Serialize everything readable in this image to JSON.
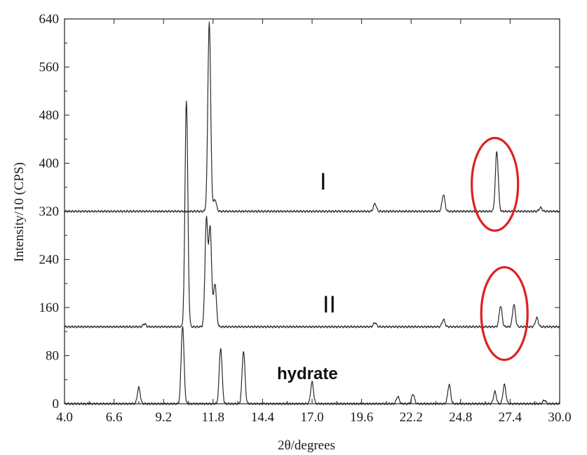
{
  "chart_data": {
    "type": "line",
    "xlabel": "2θ/degrees",
    "ylabel": "Intensity/10 (CPS)",
    "xlim": [
      4.0,
      30.0
    ],
    "ylim": [
      0,
      640
    ],
    "x_ticks": [
      "4.0",
      "6.6",
      "9.2",
      "11.8",
      "14.4",
      "17.0",
      "19.6",
      "22.2",
      "24.8",
      "27.4",
      "30.0"
    ],
    "y_ticks": [
      "0",
      "80",
      "160",
      "240",
      "320",
      "400",
      "480",
      "560",
      "640"
    ],
    "series": [
      {
        "name": "I",
        "baseline": 320,
        "peaks": [
          [
            11.6,
            635
          ],
          [
            11.9,
            340
          ],
          [
            20.3,
            333
          ],
          [
            23.9,
            348
          ],
          [
            26.7,
            420
          ],
          [
            29.0,
            326
          ]
        ]
      },
      {
        "name": "II",
        "baseline": 128,
        "peaks": [
          [
            8.2,
            133
          ],
          [
            10.4,
            505
          ],
          [
            11.45,
            305
          ],
          [
            11.65,
            290
          ],
          [
            11.9,
            200
          ],
          [
            20.3,
            135
          ],
          [
            23.9,
            140
          ],
          [
            26.9,
            163
          ],
          [
            27.6,
            165
          ],
          [
            28.8,
            143
          ]
        ]
      },
      {
        "name": "hydrate",
        "baseline": 0,
        "peaks": [
          [
            7.9,
            27
          ],
          [
            10.2,
            130
          ],
          [
            12.2,
            93
          ],
          [
            13.4,
            88
          ],
          [
            17.0,
            36
          ],
          [
            21.5,
            12
          ],
          [
            22.3,
            16
          ],
          [
            24.2,
            32
          ],
          [
            26.6,
            20
          ],
          [
            27.1,
            32
          ],
          [
            29.2,
            6
          ]
        ]
      }
    ],
    "annotations": [
      {
        "type": "ellipse",
        "color": "#e02020",
        "x": 26.6,
        "y": 365
      },
      {
        "type": "ellipse",
        "color": "#e02020",
        "x": 27.1,
        "y": 150
      }
    ],
    "grid": false
  }
}
